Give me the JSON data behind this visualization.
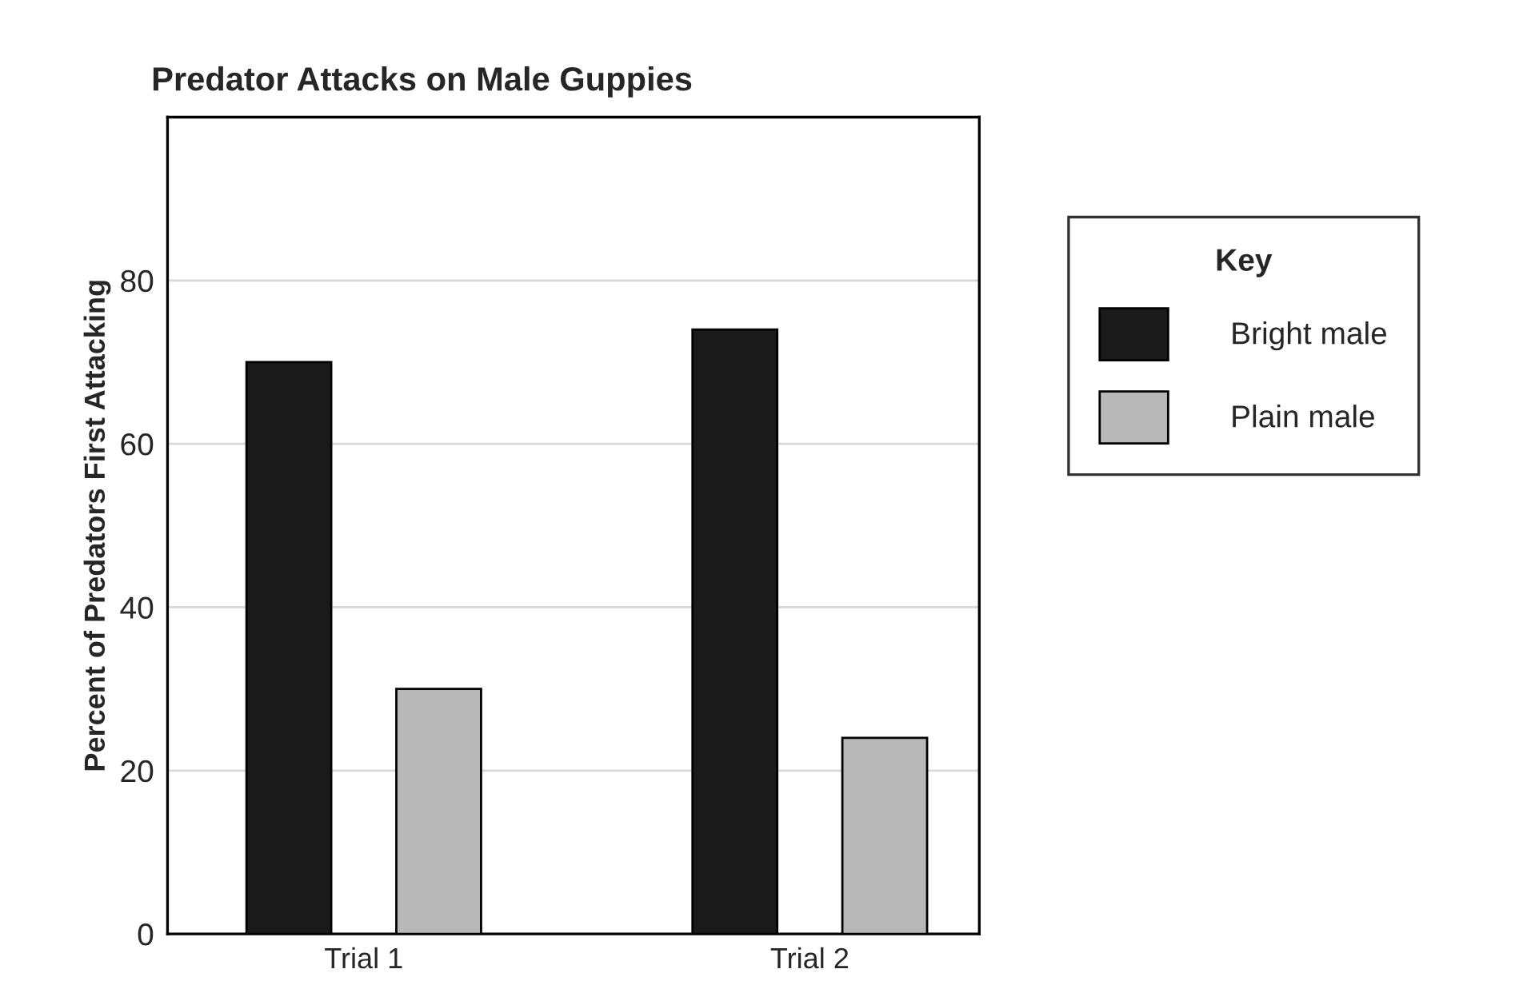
{
  "chart_data": {
    "type": "bar",
    "title": "Predator Attacks on Male Guppies",
    "ylabel": "Percent of Predators First Attacking",
    "legend_title": "Key",
    "categories": [
      "Trial 1",
      "Trial 2"
    ],
    "series": [
      {
        "name": "Bright male",
        "color": "#1a1a1a",
        "values": [
          70,
          74
        ]
      },
      {
        "name": "Plain male",
        "color": "#b8b8b8",
        "values": [
          30,
          24
        ]
      }
    ],
    "ylim": [
      0,
      100
    ],
    "yticks": [
      0,
      20,
      40,
      60,
      80
    ],
    "grid": "y",
    "legend": "right"
  }
}
